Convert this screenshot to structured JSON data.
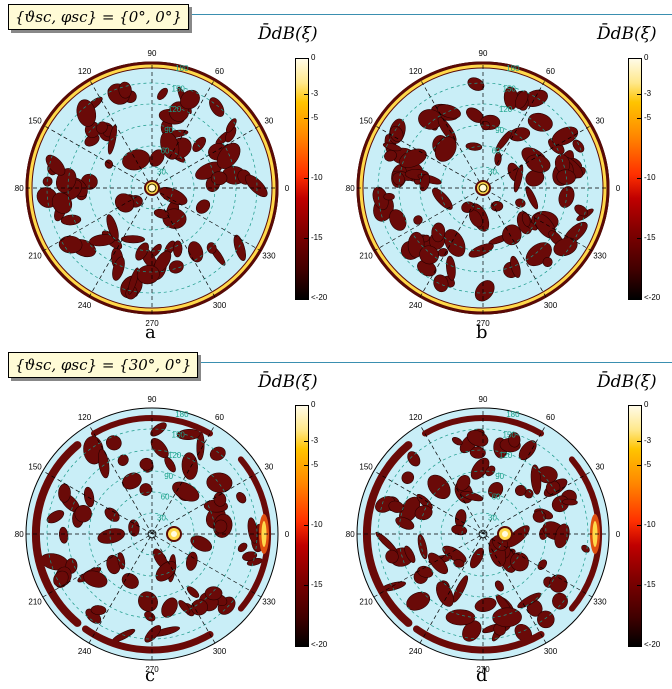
{
  "rows": [
    {
      "condition": "{ϑsc, φsc} = {0°, 0°}",
      "panels": [
        {
          "label": "a",
          "title": "D̄dB(ξ)"
        },
        {
          "label": "b",
          "title": "D̄dB(ξ)"
        }
      ]
    },
    {
      "condition": "{ϑsc, φsc} = {30°, 0°}",
      "panels": [
        {
          "label": "c",
          "title": "D̄dB(ξ)"
        },
        {
          "label": "d",
          "title": "D̄dB(ξ)"
        }
      ]
    }
  ],
  "angle_labels": [
    "0",
    "30",
    "60",
    "90",
    "120",
    "150",
    "180",
    "210",
    "240",
    "270",
    "300",
    "330"
  ],
  "radial_labels": [
    "30",
    "60",
    "90",
    "120",
    "150",
    "180"
  ],
  "colorbar": {
    "ticks": [
      "0",
      "-3",
      "-5",
      "-10",
      "-15",
      "<-20"
    ],
    "tick_values_db": [
      0,
      -3,
      -5,
      -10,
      -15,
      -20
    ],
    "range_db": [
      -20,
      0
    ]
  },
  "colors": {
    "background": "#c9eef7",
    "lobe": "#6a0a08",
    "hot": "#ffd94a",
    "rule": "#3a8fb0",
    "radial_text": "#1aa38a"
  }
}
